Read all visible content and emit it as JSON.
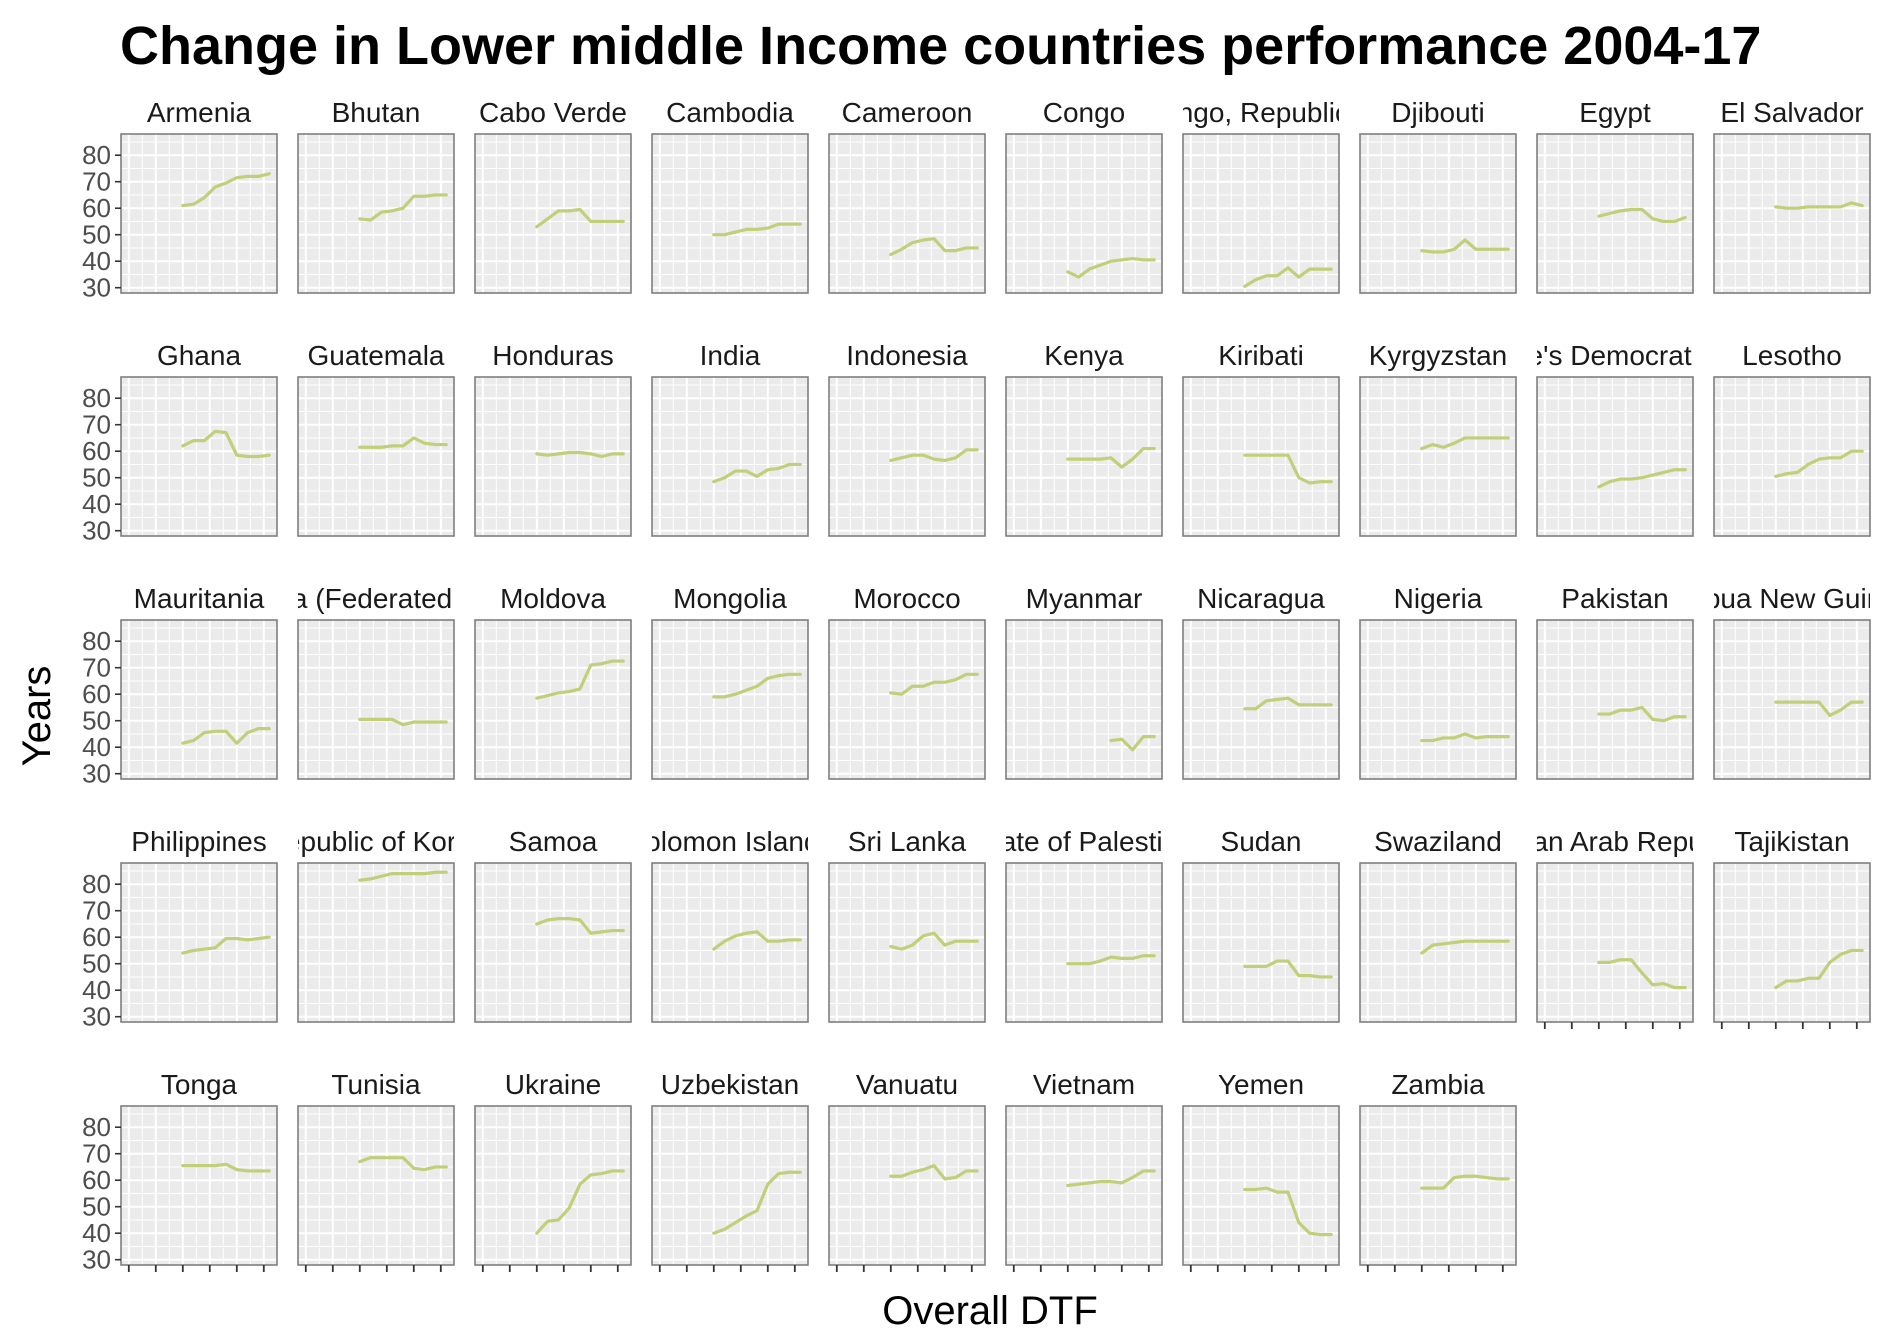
{
  "chart_data": {
    "type": "line",
    "title": "Change in Lower middle Income countries performance 2004-17",
    "xlabel": "Overall DTF",
    "ylabel": "Years",
    "ylim": [
      28,
      88
    ],
    "yticks": [
      30,
      40,
      50,
      60,
      70,
      80
    ],
    "x": [
      2004,
      2005,
      2006,
      2007,
      2008,
      2009,
      2010,
      2011,
      2012,
      2013,
      2014,
      2015,
      2016,
      2017
    ],
    "line_color": "#c2cf7a",
    "panel_background": "#ebebeb",
    "grid": true,
    "facets": [
      {
        "name": "Armenia",
        "values": [
          null,
          null,
          null,
          null,
          null,
          61,
          61.5,
          64,
          68,
          69.5,
          71.5,
          72,
          72,
          73
        ]
      },
      {
        "name": "Bhutan",
        "values": [
          null,
          null,
          null,
          null,
          null,
          56,
          55.5,
          58.5,
          59,
          60,
          64.5,
          64.5,
          65,
          65
        ]
      },
      {
        "name": "Cabo Verde",
        "values": [
          null,
          null,
          null,
          null,
          null,
          53,
          56,
          59,
          59,
          59.5,
          55,
          55,
          55,
          55
        ]
      },
      {
        "name": "Cambodia",
        "values": [
          null,
          null,
          null,
          null,
          null,
          50,
          50,
          51,
          52,
          52,
          52.5,
          54,
          54,
          54
        ]
      },
      {
        "name": "Cameroon",
        "values": [
          null,
          null,
          null,
          null,
          null,
          42.5,
          44.5,
          47,
          48,
          48.5,
          44,
          44,
          45,
          45
        ]
      },
      {
        "name": "Congo",
        "values": [
          null,
          null,
          null,
          null,
          null,
          36,
          34,
          37,
          38.5,
          40,
          40.5,
          41,
          40.5,
          40.5
        ]
      },
      {
        "name": "Congo, Republic of",
        "values": [
          null,
          null,
          null,
          null,
          null,
          30.5,
          33,
          34.5,
          34.5,
          37.5,
          34,
          37,
          37,
          37
        ]
      },
      {
        "name": "Djibouti",
        "values": [
          null,
          null,
          null,
          null,
          null,
          44,
          43.5,
          43.5,
          44.5,
          48,
          44.5,
          44.5,
          44.5,
          44.5
        ]
      },
      {
        "name": "Egypt",
        "values": [
          null,
          null,
          null,
          null,
          null,
          57,
          58,
          59,
          59.5,
          59.5,
          56,
          55,
          55,
          56.5
        ]
      },
      {
        "name": "El Salvador",
        "values": [
          null,
          null,
          null,
          null,
          null,
          60.5,
          60,
          60,
          60.5,
          60.5,
          60.5,
          60.5,
          62,
          61
        ]
      },
      {
        "name": "Ghana",
        "values": [
          null,
          null,
          null,
          null,
          null,
          62,
          64,
          64,
          67.5,
          67,
          58.5,
          58,
          58,
          58.5
        ]
      },
      {
        "name": "Guatemala",
        "values": [
          null,
          null,
          null,
          null,
          null,
          61.5,
          61.5,
          61.5,
          62,
          62,
          65,
          63,
          62.5,
          62.5
        ]
      },
      {
        "name": "Honduras",
        "values": [
          null,
          null,
          null,
          null,
          null,
          59,
          58.5,
          59,
          59.5,
          59.5,
          59,
          58,
          59,
          59
        ]
      },
      {
        "name": "India",
        "values": [
          null,
          null,
          null,
          null,
          null,
          48.5,
          50,
          52.5,
          52.5,
          50.5,
          53,
          53.5,
          55,
          55
        ]
      },
      {
        "name": "Indonesia",
        "values": [
          null,
          null,
          null,
          null,
          null,
          56.5,
          57.5,
          58.5,
          58.5,
          57,
          56.5,
          57.5,
          60.5,
          60.5
        ]
      },
      {
        "name": "Kenya",
        "values": [
          null,
          null,
          null,
          null,
          null,
          57,
          57,
          57,
          57,
          57.5,
          54,
          57,
          61,
          61
        ]
      },
      {
        "name": "Kiribati",
        "values": [
          null,
          null,
          null,
          null,
          null,
          58.5,
          58.5,
          58.5,
          58.5,
          58.5,
          50,
          48,
          48.5,
          48.5
        ]
      },
      {
        "name": "Kyrgyzstan",
        "values": [
          null,
          null,
          null,
          null,
          null,
          61,
          62.5,
          61.5,
          63,
          65,
          65,
          65,
          65,
          65
        ]
      },
      {
        "name": "Lao People's Democratic Republic",
        "values": [
          null,
          null,
          null,
          null,
          null,
          46.5,
          48.5,
          49.5,
          49.5,
          50,
          51,
          52,
          53,
          53
        ]
      },
      {
        "name": "Lesotho",
        "values": [
          null,
          null,
          null,
          null,
          null,
          50.5,
          51.5,
          52,
          55,
          57,
          57.5,
          57.5,
          60,
          60
        ]
      },
      {
        "name": "Mauritania",
        "values": [
          null,
          null,
          null,
          null,
          null,
          41.5,
          42.5,
          45.5,
          46,
          46,
          41.5,
          45.5,
          47,
          47
        ]
      },
      {
        "name": "Micronesia (Federated States of)",
        "values": [
          null,
          null,
          null,
          null,
          null,
          50.5,
          50.5,
          50.5,
          50.5,
          48.5,
          49.5,
          49.5,
          49.5,
          49.5
        ]
      },
      {
        "name": "Moldova",
        "values": [
          null,
          null,
          null,
          null,
          null,
          58.5,
          59.5,
          60.5,
          61,
          62,
          71,
          71.5,
          72.5,
          72.5
        ]
      },
      {
        "name": "Mongolia",
        "values": [
          null,
          null,
          null,
          null,
          null,
          59,
          59,
          60,
          61.5,
          63,
          66,
          67,
          67.5,
          67.5
        ]
      },
      {
        "name": "Morocco",
        "values": [
          null,
          null,
          null,
          null,
          null,
          60.5,
          60,
          63,
          63,
          64.5,
          64.5,
          65.5,
          67.5,
          67.5
        ]
      },
      {
        "name": "Myanmar",
        "values": [
          null,
          null,
          null,
          null,
          null,
          null,
          null,
          null,
          null,
          42.5,
          43,
          39,
          44,
          44
        ]
      },
      {
        "name": "Nicaragua",
        "values": [
          null,
          null,
          null,
          null,
          null,
          54.5,
          54.5,
          57.5,
          58,
          58.5,
          56,
          56,
          56,
          56
        ]
      },
      {
        "name": "Nigeria",
        "values": [
          null,
          null,
          null,
          null,
          null,
          42.5,
          42.5,
          43.5,
          43.5,
          45,
          43.5,
          44,
          44,
          44
        ]
      },
      {
        "name": "Pakistan",
        "values": [
          null,
          null,
          null,
          null,
          null,
          52.5,
          52.5,
          54,
          54,
          55,
          50.5,
          50,
          51.5,
          51.5
        ]
      },
      {
        "name": "Papua New Guinea",
        "values": [
          null,
          null,
          null,
          null,
          null,
          57,
          57,
          57,
          57,
          57,
          52,
          54,
          57,
          57
        ]
      },
      {
        "name": "Philippines",
        "values": [
          null,
          null,
          null,
          null,
          null,
          54,
          55,
          55.5,
          56,
          59.5,
          59.5,
          59,
          59.5,
          60
        ]
      },
      {
        "name": "Republic of Korea",
        "values": [
          null,
          null,
          null,
          null,
          null,
          81.5,
          82,
          83,
          84,
          84,
          84,
          84,
          84.5,
          84.5
        ]
      },
      {
        "name": "Samoa",
        "values": [
          null,
          null,
          null,
          null,
          null,
          65,
          66.5,
          67,
          67,
          66.5,
          61.5,
          62,
          62.5,
          62.5
        ]
      },
      {
        "name": "Solomon Islands",
        "values": [
          null,
          null,
          null,
          null,
          null,
          55.5,
          58.5,
          60.5,
          61.5,
          62,
          58.5,
          58.5,
          59,
          59
        ]
      },
      {
        "name": "Sri Lanka",
        "values": [
          null,
          null,
          null,
          null,
          null,
          56.5,
          55.5,
          57,
          60.5,
          61.5,
          57,
          58.5,
          58.5,
          58.5
        ]
      },
      {
        "name": "State of Palestine",
        "values": [
          null,
          null,
          null,
          null,
          null,
          50,
          50,
          50,
          51,
          52.5,
          52,
          52,
          53,
          53
        ]
      },
      {
        "name": "Sudan",
        "values": [
          null,
          null,
          null,
          null,
          null,
          49,
          49,
          49,
          51,
          51,
          45.5,
          45.5,
          45,
          45
        ]
      },
      {
        "name": "Swaziland",
        "values": [
          null,
          null,
          null,
          null,
          null,
          54,
          57,
          57.5,
          58,
          58.5,
          58.5,
          58.5,
          58.5,
          58.5
        ]
      },
      {
        "name": "Syrian Arab Republic",
        "values": [
          null,
          null,
          null,
          null,
          null,
          50.5,
          50.5,
          51.5,
          51.5,
          46.5,
          42,
          42.5,
          41,
          41
        ]
      },
      {
        "name": "Tajikistan",
        "values": [
          null,
          null,
          null,
          null,
          null,
          41,
          43.5,
          43.5,
          44.5,
          44.5,
          50.5,
          53.5,
          55,
          55
        ]
      },
      {
        "name": "Tonga",
        "values": [
          null,
          null,
          null,
          null,
          null,
          65.5,
          65.5,
          65.5,
          65.5,
          66,
          64,
          63.5,
          63.5,
          63.5
        ]
      },
      {
        "name": "Tunisia",
        "values": [
          null,
          null,
          null,
          null,
          null,
          67,
          68.5,
          68.5,
          68.5,
          68.5,
          64.5,
          64,
          65,
          65
        ]
      },
      {
        "name": "Ukraine",
        "values": [
          null,
          null,
          null,
          null,
          null,
          40,
          44.5,
          45,
          49.5,
          58.5,
          62,
          62.5,
          63.5,
          63.5
        ]
      },
      {
        "name": "Uzbekistan",
        "values": [
          null,
          null,
          null,
          null,
          null,
          40,
          41.5,
          44,
          46.5,
          48.5,
          58.5,
          62.5,
          63,
          63
        ]
      },
      {
        "name": "Vanuatu",
        "values": [
          null,
          null,
          null,
          null,
          null,
          61.5,
          61.5,
          63,
          64,
          65.5,
          60.5,
          61,
          63.5,
          63.5
        ]
      },
      {
        "name": "Vietnam",
        "values": [
          null,
          null,
          null,
          null,
          null,
          58,
          58.5,
          59,
          59.5,
          59.5,
          59,
          61,
          63.5,
          63.5
        ]
      },
      {
        "name": "Yemen",
        "values": [
          null,
          null,
          null,
          null,
          null,
          56.5,
          56.5,
          57,
          55.5,
          55.5,
          44,
          40,
          39.5,
          39.5
        ]
      },
      {
        "name": "Zambia",
        "values": [
          null,
          null,
          null,
          null,
          null,
          57,
          57,
          57,
          61,
          61.5,
          61.5,
          61,
          60.5,
          60.5
        ]
      }
    ]
  }
}
